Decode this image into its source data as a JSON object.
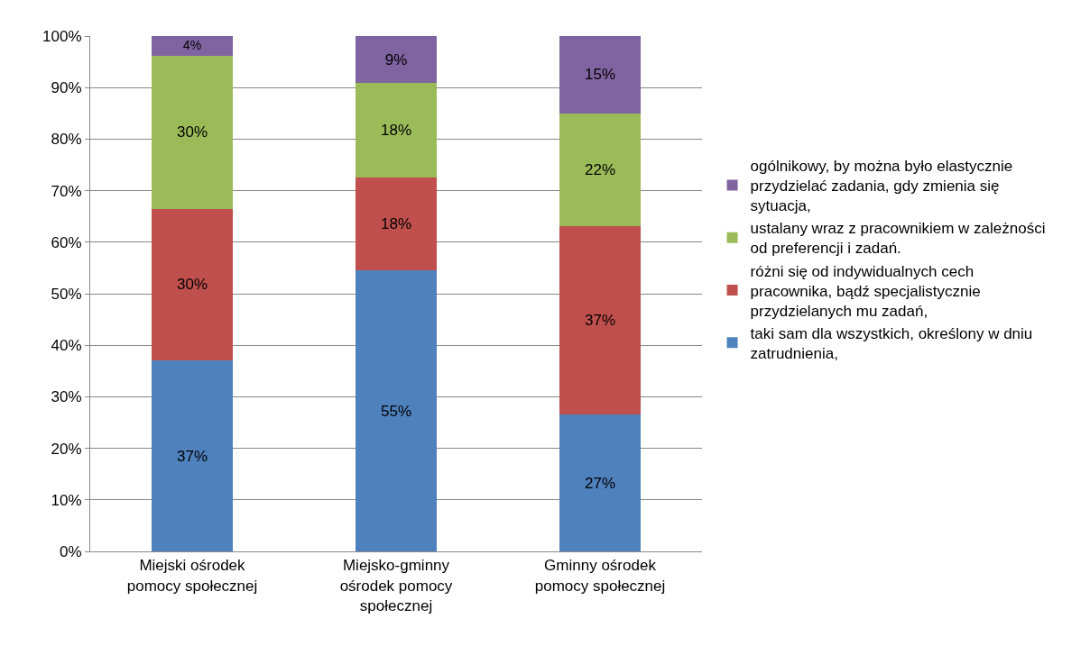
{
  "chart_data": {
    "type": "bar",
    "stacked": true,
    "categories": [
      "Miejski ośrodek pomocy społecznej",
      "Miejsko-gminny ośrodek pomocy społecznej",
      "Gminny ośrodek pomocy społecznej"
    ],
    "series": [
      {
        "name": "taki sam dla wszystkich, określony w dniu zatrudnienia,",
        "color": "#4f81bd",
        "values": [
          37.0,
          54.5,
          26.5
        ],
        "value_labels": [
          "37%",
          "55%",
          "27%"
        ]
      },
      {
        "name": "różni się od indywidualnych cech pracownika, bądź specjalistycznie przydzielanych mu zadań,",
        "color": "#c0504d",
        "values": [
          29.5,
          18.1,
          36.7
        ],
        "value_labels": [
          "30%",
          "18%",
          "37%"
        ]
      },
      {
        "name": "ustalany wraz z pracownikiem w zależności od preferencji i zadań.",
        "color": "#9bbb59",
        "values": [
          29.7,
          18.3,
          21.8
        ],
        "value_labels": [
          "30%",
          "18%",
          "22%"
        ]
      },
      {
        "name": "ogólnikowy, by można było elastycznie przydzielać zadania, gdy zmienia się sytuacja,",
        "color": "#8064a2",
        "values": [
          3.8,
          9.1,
          15.0
        ],
        "value_labels": [
          "4%",
          "9%",
          "15%"
        ]
      }
    ],
    "ylim": [
      0,
      100
    ],
    "yticks": [
      {
        "value": 0,
        "label": "0%"
      },
      {
        "value": 10,
        "label": "10%"
      },
      {
        "value": 20,
        "label": "20%"
      },
      {
        "value": 30,
        "label": "30%"
      },
      {
        "value": 40,
        "label": "40%"
      },
      {
        "value": 50,
        "label": "50%"
      },
      {
        "value": 60,
        "label": "60%"
      },
      {
        "value": 70,
        "label": "70%"
      },
      {
        "value": 80,
        "label": "80%"
      },
      {
        "value": 90,
        "label": "90%"
      },
      {
        "value": 100,
        "label": "100%"
      }
    ],
    "grid": "y",
    "legend": "right"
  }
}
